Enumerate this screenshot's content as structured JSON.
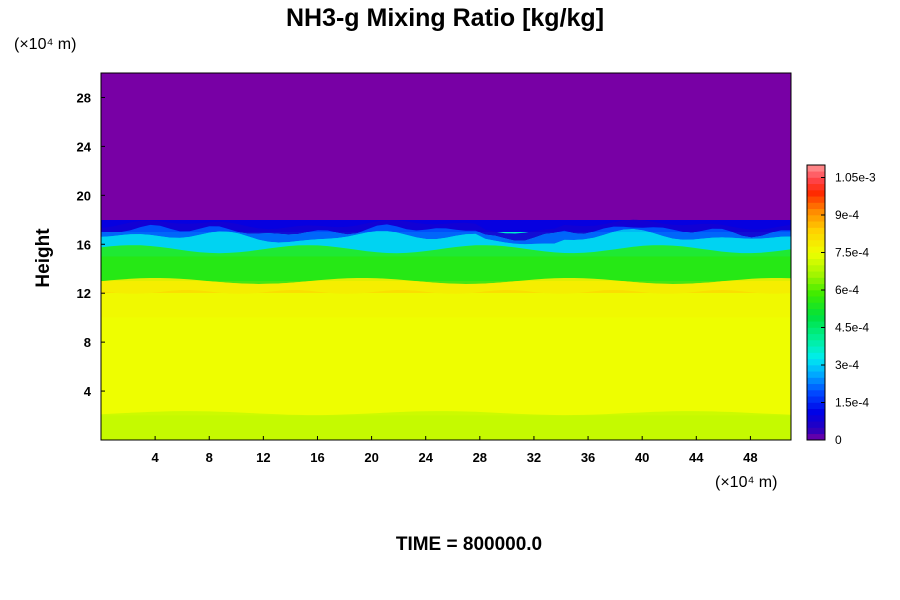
{
  "chart_data": {
    "type": "heatmap",
    "title": "NH3-g Mixing Ratio [kg/kg]",
    "ylabel": "Height",
    "y_unit": "(×10⁴ m)",
    "x_unit": "(×10⁴ m)",
    "xlim": [
      0,
      51
    ],
    "ylim": [
      0,
      30
    ],
    "x_ticks": [
      4,
      8,
      12,
      16,
      20,
      24,
      28,
      32,
      36,
      40,
      44,
      48
    ],
    "y_ticks": [
      4,
      8,
      12,
      16,
      20,
      24,
      28
    ],
    "colorbar": {
      "min": 0,
      "max": 0.0011,
      "tick_values": [
        0,
        0.00015,
        0.0003,
        0.00045,
        0.0006,
        0.00075,
        0.0009,
        0.00105
      ],
      "tick_labels": [
        "0",
        "1.5e-4",
        "3e-4",
        "4.5e-4",
        "6e-4",
        "7.5e-4",
        "9e-4",
        "1.05e-3"
      ]
    },
    "layers": [
      {
        "range": "0–2",
        "value": 0.00071
      },
      {
        "range": "2–10",
        "value": 0.00075
      },
      {
        "range": "10–12",
        "value": 0.00076
      },
      {
        "range": "12–13",
        "value": 0.00081
      },
      {
        "range": "13–15",
        "value": 0.00057
      },
      {
        "range": "15–17",
        "value": 0.00036
      },
      {
        "range": "17–18",
        "value": 0.0001
      },
      {
        "range": "18–30",
        "value": 0
      }
    ],
    "caption": "TIME = 800000.0"
  }
}
